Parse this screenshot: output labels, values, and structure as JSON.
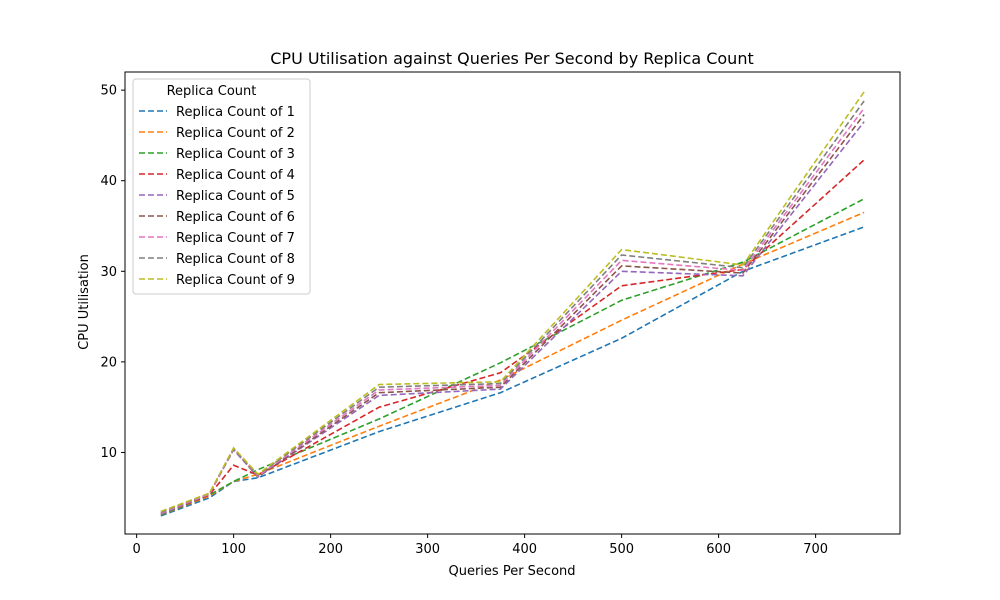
{
  "chart_data": {
    "type": "line",
    "title": "CPU Utilisation against Queries Per Second by Replica Count",
    "xlabel": "Queries Per Second",
    "ylabel": "CPU Utilisation",
    "xlim": [
      -12,
      787
    ],
    "ylim": [
      1,
      52
    ],
    "xticks": [
      0,
      100,
      200,
      300,
      400,
      500,
      600,
      700
    ],
    "yticks": [
      10,
      20,
      30,
      40,
      50
    ],
    "grid": false,
    "line_style": "dashed",
    "legend": {
      "title": "Replica Count",
      "placement": "top-left"
    },
    "x": [
      25,
      75,
      100,
      125,
      250,
      375,
      500,
      625,
      750
    ],
    "series": [
      {
        "name": "Replica Count of 1",
        "color": "#1f77b4",
        "values": [
          3.0,
          5.0,
          6.8,
          7.2,
          12.3,
          16.6,
          22.6,
          30.0,
          34.9
        ]
      },
      {
        "name": "Replica Count of 2",
        "color": "#ff7f0e",
        "values": [
          3.1,
          5.2,
          6.8,
          7.6,
          12.9,
          18.0,
          24.6,
          30.8,
          36.5
        ]
      },
      {
        "name": "Replica Count of 3",
        "color": "#2ca02c",
        "values": [
          3.1,
          5.3,
          6.8,
          8.1,
          13.7,
          19.9,
          26.8,
          31.0,
          38.0
        ]
      },
      {
        "name": "Replica Count of 4",
        "color": "#d62728",
        "values": [
          3.2,
          5.3,
          8.6,
          7.5,
          15.0,
          18.8,
          28.4,
          30.2,
          42.3
        ]
      },
      {
        "name": "Replica Count of 5",
        "color": "#9467bd",
        "values": [
          3.2,
          5.4,
          10.3,
          7.3,
          16.3,
          17.0,
          30.0,
          29.5,
          46.5
        ]
      },
      {
        "name": "Replica Count of 6",
        "color": "#8c564b",
        "values": [
          3.3,
          5.4,
          10.4,
          7.3,
          16.6,
          17.2,
          30.6,
          29.8,
          47.3
        ]
      },
      {
        "name": "Replica Count of 7",
        "color": "#e377c2",
        "values": [
          3.3,
          5.4,
          10.4,
          7.4,
          16.9,
          17.4,
          31.2,
          30.1,
          48.0
        ]
      },
      {
        "name": "Replica Count of 8",
        "color": "#7f7f7f",
        "values": [
          3.4,
          5.5,
          10.4,
          7.5,
          17.2,
          17.6,
          31.8,
          30.4,
          48.8
        ]
      },
      {
        "name": "Replica Count of 9",
        "color": "#bcbd22",
        "values": [
          3.5,
          5.5,
          10.5,
          7.6,
          17.5,
          17.8,
          32.4,
          30.7,
          49.8
        ]
      }
    ]
  }
}
